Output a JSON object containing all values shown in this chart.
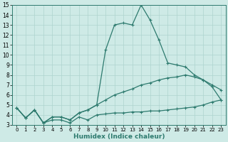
{
  "title": "",
  "xlabel": "Humidex (Indice chaleur)",
  "ylabel": "",
  "background_color": "#ceeae6",
  "grid_color": "#aed4ce",
  "line_color": "#2d7a6e",
  "xlim": [
    -0.5,
    23.5
  ],
  "ylim": [
    3,
    15
  ],
  "x_ticks": [
    0,
    1,
    2,
    3,
    4,
    5,
    6,
    7,
    8,
    9,
    10,
    11,
    12,
    13,
    14,
    15,
    16,
    17,
    18,
    19,
    20,
    21,
    22,
    23
  ],
  "y_ticks": [
    3,
    4,
    5,
    6,
    7,
    8,
    9,
    10,
    11,
    12,
    13,
    14,
    15
  ],
  "series": [
    {
      "x": [
        0,
        1,
        2,
        3,
        4,
        5,
        6,
        7,
        8,
        9,
        10,
        11,
        12,
        13,
        14,
        15,
        16,
        17,
        18,
        19,
        20,
        21,
        22,
        23
      ],
      "y": [
        4.7,
        3.7,
        4.5,
        3.2,
        3.5,
        3.5,
        3.2,
        3.8,
        3.5,
        4.0,
        4.1,
        4.2,
        4.2,
        4.3,
        4.3,
        4.4,
        4.4,
        4.5,
        4.6,
        4.7,
        4.8,
        5.0,
        5.3,
        5.5
      ]
    },
    {
      "x": [
        0,
        1,
        2,
        3,
        4,
        5,
        6,
        7,
        8,
        9,
        10,
        11,
        12,
        13,
        14,
        15,
        16,
        17,
        18,
        19,
        20,
        21,
        22,
        23
      ],
      "y": [
        4.7,
        3.7,
        4.5,
        3.2,
        3.8,
        3.8,
        3.5,
        4.2,
        4.5,
        5.0,
        5.5,
        6.0,
        6.3,
        6.6,
        7.0,
        7.2,
        7.5,
        7.7,
        7.8,
        8.0,
        7.8,
        7.5,
        7.0,
        6.5
      ]
    },
    {
      "x": [
        0,
        1,
        2,
        3,
        4,
        5,
        6,
        7,
        8,
        9,
        10,
        11,
        12,
        13,
        14,
        15,
        16,
        17,
        18,
        19,
        20,
        21,
        22,
        23
      ],
      "y": [
        4.7,
        3.7,
        4.5,
        3.2,
        3.8,
        3.8,
        3.5,
        4.2,
        4.5,
        5.0,
        10.5,
        13.0,
        13.2,
        13.0,
        15.0,
        13.5,
        11.5,
        9.2,
        9.0,
        8.8,
        8.0,
        7.5,
        6.8,
        5.5
      ]
    }
  ]
}
